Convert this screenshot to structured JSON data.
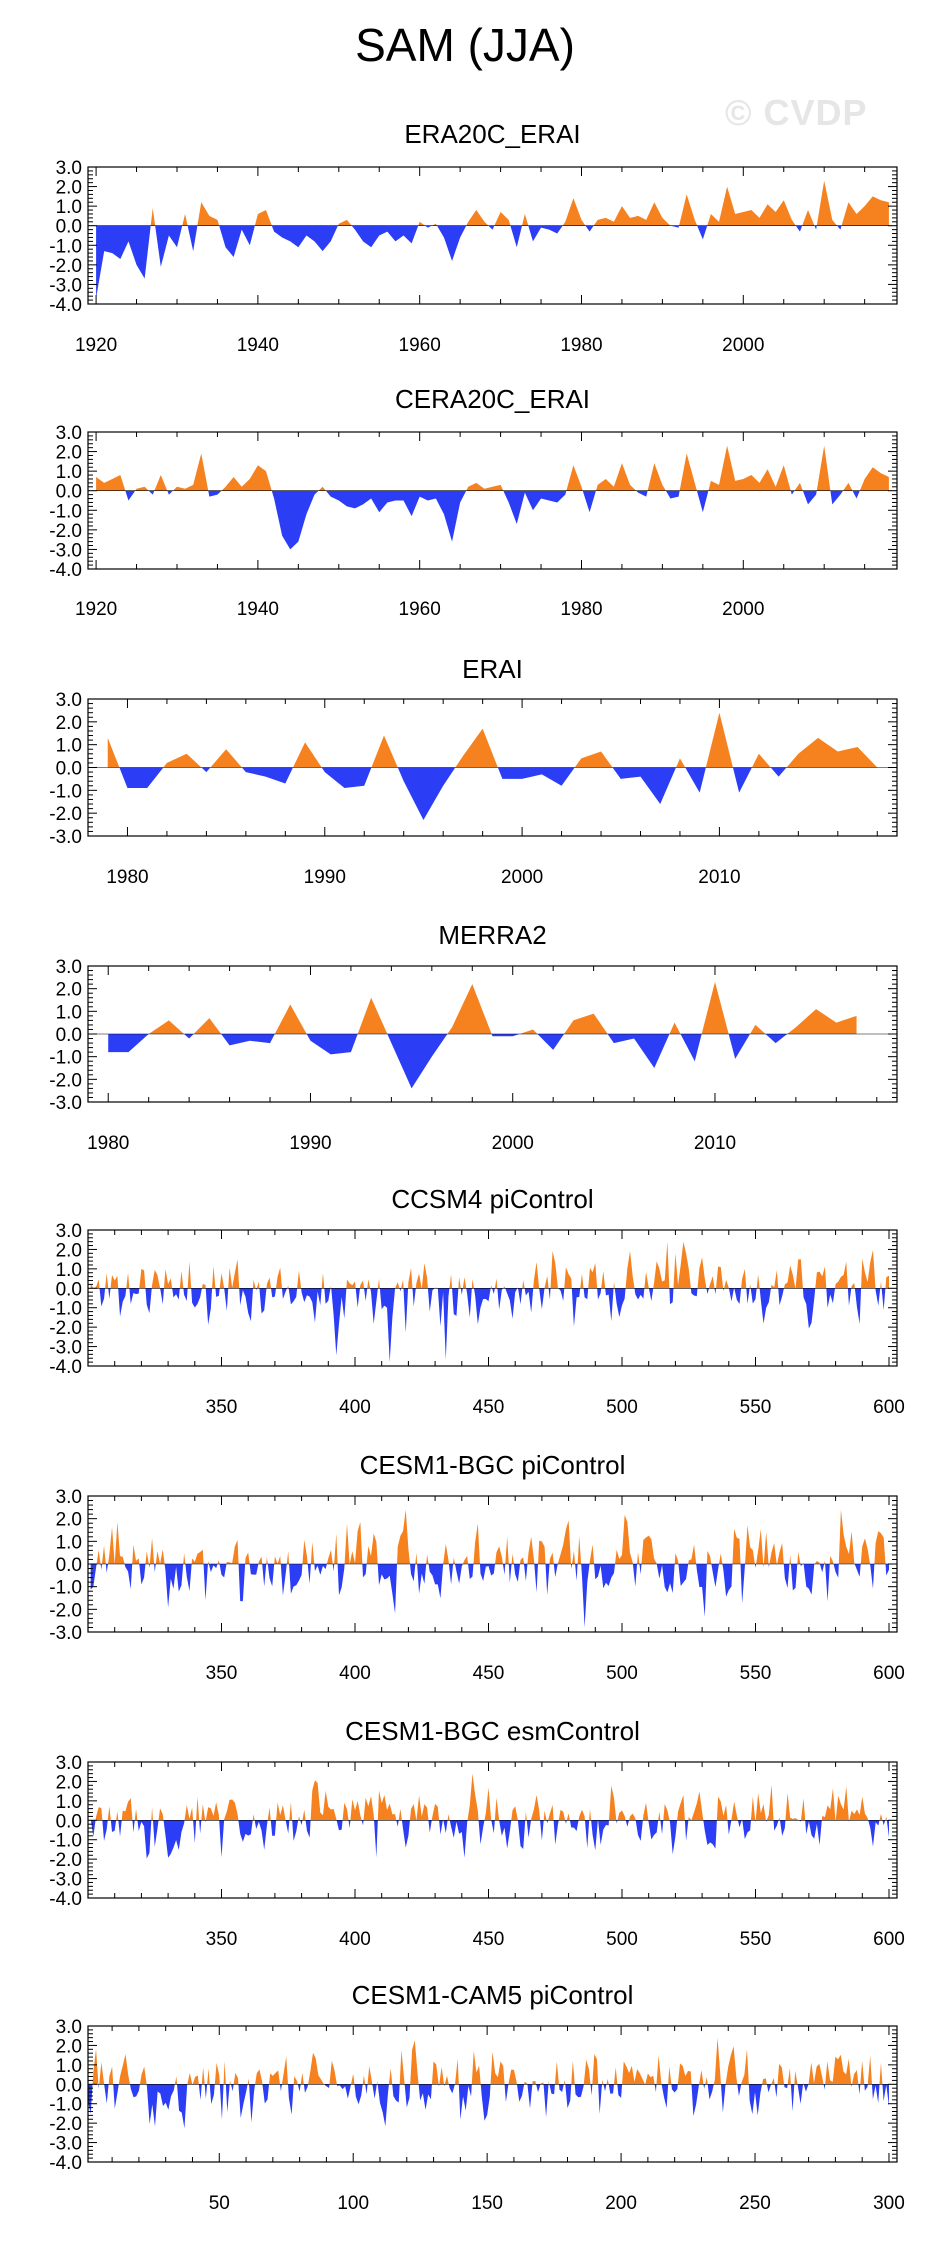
{
  "title": "SAM (JJA)",
  "watermark": "© CVDP",
  "colors": {
    "positive": "#f5821f",
    "negative": "#2b3ef5",
    "axis": "#000000"
  },
  "chart_data": [
    {
      "type": "area",
      "title": "ERA20C_ERAI",
      "xlim": [
        1919,
        2019
      ],
      "ylim": [
        -4,
        3
      ],
      "yticks": [
        3,
        2,
        1,
        0,
        -1,
        -2,
        -3,
        -4
      ],
      "ytick_labels": [
        "3.0",
        "2.0",
        "1.0",
        "0.0",
        "-1.0",
        "-2.0",
        "-3.0",
        "-4.0"
      ],
      "xticks": [
        1920,
        1940,
        1960,
        1980,
        2000
      ],
      "x": [
        1920,
        1921,
        1922,
        1923,
        1924,
        1925,
        1926,
        1927,
        1928,
        1929,
        1930,
        1931,
        1932,
        1933,
        1934,
        1935,
        1936,
        1937,
        1938,
        1939,
        1940,
        1941,
        1942,
        1943,
        1944,
        1945,
        1946,
        1947,
        1948,
        1949,
        1950,
        1951,
        1952,
        1953,
        1954,
        1955,
        1956,
        1957,
        1958,
        1959,
        1960,
        1961,
        1962,
        1963,
        1964,
        1965,
        1966,
        1967,
        1968,
        1969,
        1970,
        1971,
        1972,
        1973,
        1974,
        1975,
        1976,
        1977,
        1978,
        1979,
        1980,
        1981,
        1982,
        1983,
        1984,
        1985,
        1986,
        1987,
        1988,
        1989,
        1990,
        1991,
        1992,
        1993,
        1994,
        1995,
        1996,
        1997,
        1998,
        1999,
        2000,
        2001,
        2002,
        2003,
        2004,
        2005,
        2006,
        2007,
        2008,
        2009,
        2010,
        2011,
        2012,
        2013,
        2014,
        2015,
        2016,
        2017,
        2018
      ],
      "values": [
        -3.7,
        -1.3,
        -1.4,
        -1.7,
        -0.8,
        -2.0,
        -2.7,
        0.9,
        -2.1,
        -0.5,
        -1.1,
        0.6,
        -1.3,
        1.2,
        0.5,
        0.3,
        -1.1,
        -1.6,
        -0.2,
        -1.0,
        0.6,
        0.8,
        -0.3,
        -0.6,
        -0.8,
        -1.1,
        -0.5,
        -0.8,
        -1.3,
        -0.8,
        0.1,
        0.3,
        -0.2,
        -0.8,
        -1.1,
        -0.5,
        -0.3,
        -0.8,
        -0.5,
        -0.9,
        0.2,
        -0.1,
        0.1,
        -0.6,
        -1.8,
        -0.6,
        0.2,
        0.8,
        0.2,
        -0.2,
        0.7,
        0.3,
        -1.1,
        0.6,
        -0.8,
        -0.1,
        -0.2,
        -0.4,
        0.2,
        1.4,
        0.3,
        -0.3,
        0.3,
        0.4,
        0.2,
        1.0,
        0.4,
        0.5,
        0.3,
        1.2,
        0.4,
        0.0,
        -0.1,
        1.6,
        0.3,
        -0.7,
        0.6,
        0.2,
        2.0,
        0.6,
        0.7,
        0.8,
        0.4,
        1.1,
        0.7,
        1.3,
        0.3,
        -0.3,
        0.8,
        -0.2,
        2.3,
        0.3,
        -0.2,
        1.2,
        0.6,
        1.0,
        1.5,
        1.3,
        1.2
      ]
    },
    {
      "type": "area",
      "title": "CERA20C_ERAI",
      "xlim": [
        1919,
        2019
      ],
      "ylim": [
        -4,
        3
      ],
      "yticks": [
        3,
        2,
        1,
        0,
        -1,
        -2,
        -3,
        -4
      ],
      "ytick_labels": [
        "3.0",
        "2.0",
        "1.0",
        "0.0",
        "-1.0",
        "-2.0",
        "-3.0",
        "-4.0"
      ],
      "xticks": [
        1920,
        1940,
        1960,
        1980,
        2000
      ],
      "x": [
        1920,
        1921,
        1922,
        1923,
        1924,
        1925,
        1926,
        1927,
        1928,
        1929,
        1930,
        1931,
        1932,
        1933,
        1934,
        1935,
        1936,
        1937,
        1938,
        1939,
        1940,
        1941,
        1942,
        1943,
        1944,
        1945,
        1946,
        1947,
        1948,
        1949,
        1950,
        1951,
        1952,
        1953,
        1954,
        1955,
        1956,
        1957,
        1958,
        1959,
        1960,
        1961,
        1962,
        1963,
        1964,
        1965,
        1966,
        1967,
        1968,
        1969,
        1970,
        1971,
        1972,
        1973,
        1974,
        1975,
        1976,
        1977,
        1978,
        1979,
        1980,
        1981,
        1982,
        1983,
        1984,
        1985,
        1986,
        1987,
        1988,
        1989,
        1990,
        1991,
        1992,
        1993,
        1994,
        1995,
        1996,
        1997,
        1998,
        1999,
        2000,
        2001,
        2002,
        2003,
        2004,
        2005,
        2006,
        2007,
        2008,
        2009,
        2010,
        2011,
        2012,
        2013,
        2014,
        2015,
        2016,
        2017,
        2018
      ],
      "values": [
        0.7,
        0.4,
        0.6,
        0.8,
        -0.5,
        0.1,
        0.2,
        -0.2,
        0.8,
        -0.2,
        0.2,
        0.1,
        0.3,
        1.9,
        -0.3,
        -0.2,
        0.2,
        0.7,
        0.2,
        0.6,
        1.3,
        1.0,
        -0.4,
        -2.3,
        -3.0,
        -2.6,
        -1.2,
        -0.2,
        0.2,
        -0.3,
        -0.5,
        -0.8,
        -0.9,
        -0.7,
        -0.4,
        -1.1,
        -0.6,
        -0.5,
        -0.5,
        -1.3,
        -0.3,
        -0.5,
        -0.4,
        -1.2,
        -2.6,
        -0.6,
        0.2,
        0.4,
        0.1,
        0.2,
        0.3,
        -0.6,
        -1.7,
        -0.1,
        -1.0,
        -0.4,
        -0.5,
        -0.6,
        -0.2,
        1.3,
        0.2,
        -1.1,
        0.3,
        0.6,
        0.2,
        1.4,
        0.3,
        -0.1,
        -0.3,
        1.4,
        0.3,
        -0.4,
        -0.3,
        1.9,
        0.4,
        -1.1,
        0.5,
        0.3,
        2.3,
        0.5,
        0.6,
        0.8,
        0.4,
        1.1,
        0.2,
        1.3,
        -0.2,
        0.4,
        -0.7,
        -0.2,
        2.3,
        -0.7,
        -0.2,
        0.4,
        -0.4,
        0.6,
        1.2,
        0.9,
        0.7
      ]
    },
    {
      "type": "area",
      "title": "ERAI",
      "xlim": [
        1978,
        2019
      ],
      "ylim": [
        -3,
        3
      ],
      "yticks": [
        3,
        2,
        1,
        0,
        -1,
        -2,
        -3
      ],
      "ytick_labels": [
        "3.0",
        "2.0",
        "1.0",
        "0.0",
        "-1.0",
        "-2.0",
        "-3.0"
      ],
      "xticks": [
        1980,
        1990,
        2000,
        2010
      ],
      "x": [
        1979,
        1980,
        1981,
        1982,
        1983,
        1984,
        1985,
        1986,
        1987,
        1988,
        1989,
        1990,
        1991,
        1992,
        1993,
        1994,
        1995,
        1996,
        1997,
        1998,
        1999,
        2000,
        2001,
        2002,
        2003,
        2004,
        2005,
        2006,
        2007,
        2008,
        2009,
        2010,
        2011,
        2012,
        2013,
        2014,
        2015,
        2016,
        2017,
        2018
      ],
      "values": [
        1.3,
        -0.9,
        -0.9,
        0.2,
        0.6,
        -0.2,
        0.8,
        -0.2,
        -0.4,
        -0.7,
        1.1,
        -0.2,
        -0.9,
        -0.8,
        1.4,
        -0.6,
        -2.3,
        -0.8,
        0.5,
        1.7,
        -0.5,
        -0.5,
        -0.3,
        -0.8,
        0.4,
        0.7,
        -0.5,
        -0.4,
        -1.6,
        0.4,
        -1.1,
        2.4,
        -1.1,
        0.6,
        -0.4,
        0.6,
        1.3,
        0.7,
        0.9,
        0.0
      ]
    },
    {
      "type": "area",
      "title": "MERRA2",
      "xlim": [
        1979,
        2019
      ],
      "ylim": [
        -3,
        3
      ],
      "yticks": [
        3,
        2,
        1,
        0,
        -1,
        -2,
        -3
      ],
      "ytick_labels": [
        "3.0",
        "2.0",
        "1.0",
        "0.0",
        "-1.0",
        "-2.0",
        "-3.0"
      ],
      "xticks": [
        1980,
        1990,
        2000,
        2010
      ],
      "x": [
        1980,
        1981,
        1982,
        1983,
        1984,
        1985,
        1986,
        1987,
        1988,
        1989,
        1990,
        1991,
        1992,
        1993,
        1994,
        1995,
        1996,
        1997,
        1998,
        1999,
        2000,
        2001,
        2002,
        2003,
        2004,
        2005,
        2006,
        2007,
        2008,
        2009,
        2010,
        2011,
        2012,
        2013,
        2014,
        2015,
        2016,
        2017
      ],
      "values": [
        -0.8,
        -0.8,
        0.0,
        0.6,
        -0.2,
        0.7,
        -0.5,
        -0.3,
        -0.4,
        1.3,
        -0.3,
        -0.9,
        -0.8,
        1.6,
        -0.4,
        -2.4,
        -1.0,
        0.3,
        2.2,
        -0.1,
        -0.1,
        0.2,
        -0.7,
        0.6,
        0.9,
        -0.4,
        -0.2,
        -1.5,
        0.5,
        -1.2,
        2.3,
        -1.1,
        0.4,
        -0.4,
        0.3,
        1.1,
        0.5,
        0.8
      ]
    },
    {
      "type": "area",
      "title": "CCSM4 piControl",
      "xlim": [
        300,
        603
      ],
      "ylim": [
        -4,
        3
      ],
      "yticks": [
        3,
        2,
        1,
        0,
        -1,
        -2,
        -3,
        -4
      ],
      "ytick_labels": [
        "3.0",
        "2.0",
        "1.0",
        "0.0",
        "-1.0",
        "-2.0",
        "-3.0",
        "-4.0"
      ],
      "xticks": [
        350,
        400,
        450,
        500,
        550,
        600
      ],
      "x_start": 301,
      "seed": 11,
      "values": []
    },
    {
      "type": "area",
      "title": "CESM1-BGC piControl",
      "xlim": [
        300,
        603
      ],
      "ylim": [
        -3,
        3
      ],
      "yticks": [
        3,
        2,
        1,
        0,
        -1,
        -2,
        -3
      ],
      "ytick_labels": [
        "3.0",
        "2.0",
        "1.0",
        "0.0",
        "-1.0",
        "-2.0",
        "-3.0"
      ],
      "xticks": [
        350,
        400,
        450,
        500,
        550,
        600
      ],
      "x_start": 301,
      "seed": 23,
      "values": []
    },
    {
      "type": "area",
      "title": "CESM1-BGC esmControl",
      "xlim": [
        300,
        603
      ],
      "ylim": [
        -4,
        3
      ],
      "yticks": [
        3,
        2,
        1,
        0,
        -1,
        -2,
        -3,
        -4
      ],
      "ytick_labels": [
        "3.0",
        "2.0",
        "1.0",
        "0.0",
        "-1.0",
        "-2.0",
        "-3.0",
        "-4.0"
      ],
      "xticks": [
        350,
        400,
        450,
        500,
        550,
        600
      ],
      "x_start": 301,
      "seed": 37,
      "values": []
    },
    {
      "type": "area",
      "title": "CESM1-CAM5 piControl",
      "xlim": [
        1,
        303
      ],
      "ylim": [
        -4,
        3
      ],
      "yticks": [
        3,
        2,
        1,
        0,
        -1,
        -2,
        -3,
        -4
      ],
      "ytick_labels": [
        "3.0",
        "2.0",
        "1.0",
        "0.0",
        "-1.0",
        "-2.0",
        "-3.0",
        "-4.0"
      ],
      "xticks": [
        50,
        100,
        150,
        200,
        250,
        300
      ],
      "x_start": 1,
      "seed": 53,
      "values": []
    }
  ]
}
